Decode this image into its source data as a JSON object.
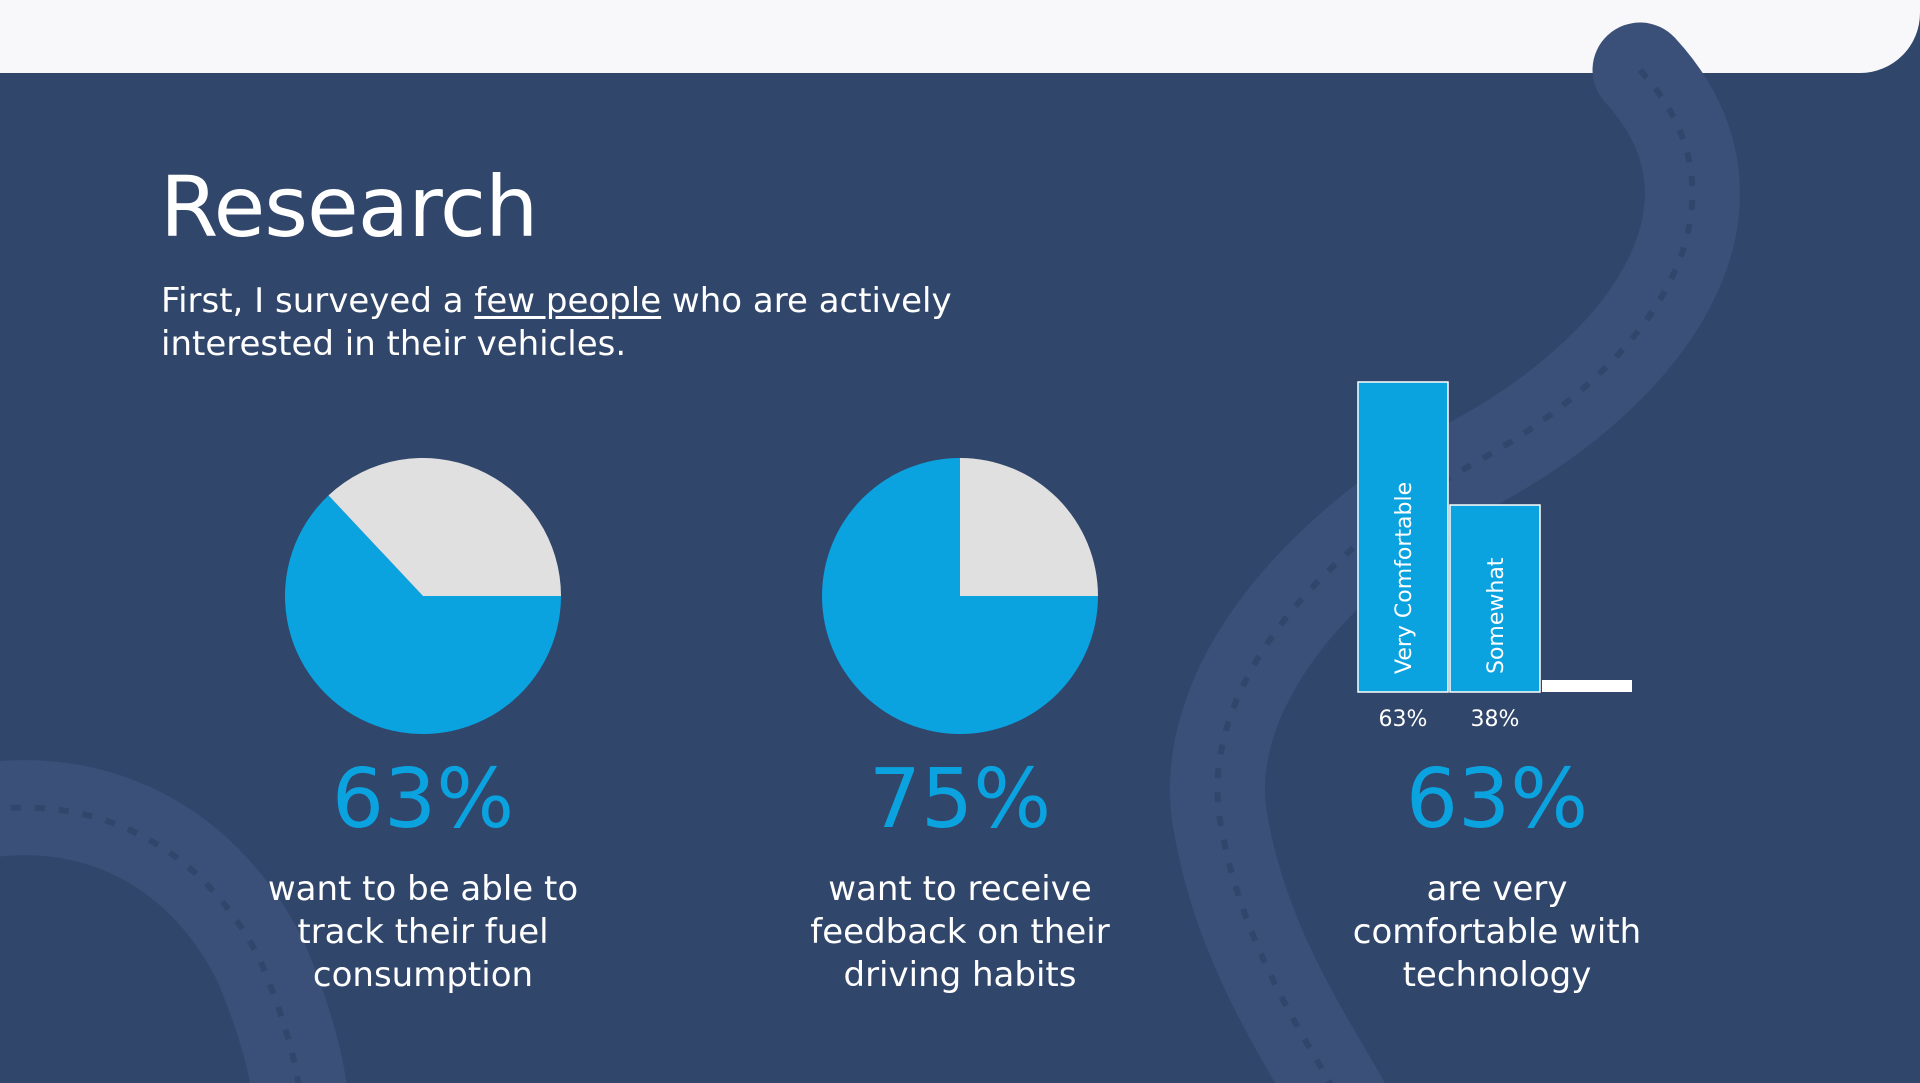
{
  "colors": {
    "background": "#31466b",
    "topbar": "#f8f8fa",
    "accent": "#0aa3e0",
    "remainder": "#e0e0e0",
    "text": "#ffffff"
  },
  "header": {
    "title": "Research",
    "subtitle_before": "First, I surveyed a ",
    "subtitle_link": "few people",
    "subtitle_after": " who are actively interested in their vehicles."
  },
  "stats": [
    {
      "value": "63%",
      "caption": "want to be able to track their fuel consumption"
    },
    {
      "value": "75%",
      "caption": "want to receive feedback on their driving habits"
    },
    {
      "value": "63%",
      "caption": "are very comfortable with technology"
    }
  ],
  "chart_data": [
    {
      "type": "pie",
      "slices": [
        {
          "label": "",
          "value": 63,
          "color": "#0aa3e0"
        },
        {
          "label": "",
          "value": 37,
          "color": "#e0e0e0"
        }
      ]
    },
    {
      "type": "pie",
      "slices": [
        {
          "label": "",
          "value": 75,
          "color": "#0aa3e0"
        },
        {
          "label": "",
          "value": 25,
          "color": "#e0e0e0"
        }
      ]
    },
    {
      "type": "bar",
      "categories": [
        "Very Comfortable",
        "Somewhat",
        ""
      ],
      "values": [
        63,
        38,
        0
      ],
      "value_labels": [
        "63%",
        "38%",
        ""
      ],
      "ylim": [
        0,
        63
      ],
      "grid": false
    }
  ]
}
